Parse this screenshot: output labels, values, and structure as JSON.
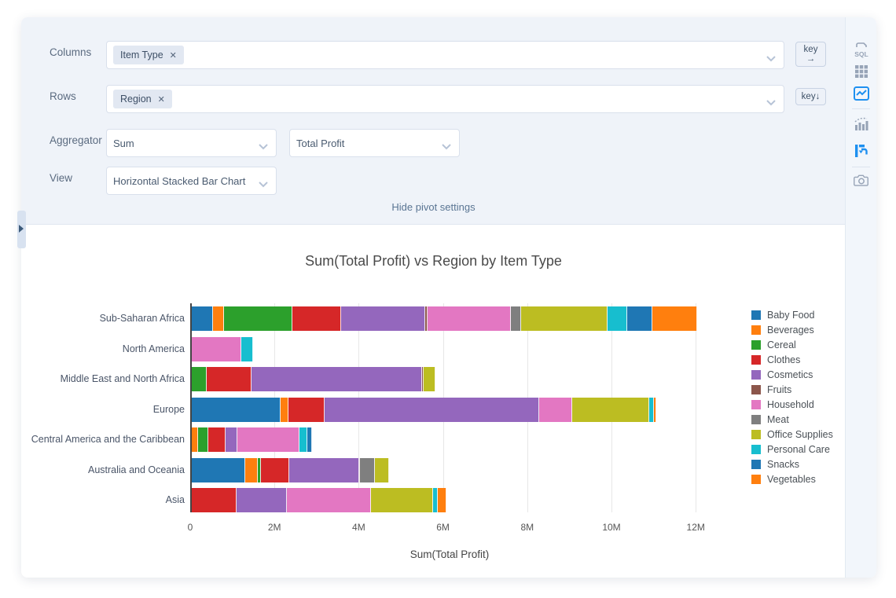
{
  "settings": {
    "columns_label": "Columns",
    "columns_tag": "Item Type",
    "rows_label": "Rows",
    "rows_tag": "Region",
    "aggregator_label": "Aggregator",
    "aggregator_value": "Sum",
    "aggregator_field": "Total Profit",
    "view_label": "View",
    "view_value": "Horizontal Stacked Bar Chart",
    "remove_icon": "✕",
    "key_col_label": "key",
    "key_col_arrow": "→",
    "key_row_label": "key",
    "key_row_arrow": "↓",
    "hide_link": "Hide pivot settings"
  },
  "toolbar": {
    "icons": [
      {
        "name": "sql-icon",
        "active": false
      },
      {
        "name": "table-icon",
        "active": false
      },
      {
        "name": "chart-image-icon",
        "active": true
      },
      {
        "name": "stats-chart-icon",
        "active": false
      },
      {
        "name": "pivot-icon",
        "active": true
      },
      {
        "name": "camera-icon",
        "active": false
      }
    ],
    "active_color": "#1e90f0",
    "inactive_color": "#97a4b7"
  },
  "chart_data": {
    "type": "bar",
    "orientation": "horizontal",
    "stacked": true,
    "grid": true,
    "legend_position": "right",
    "title": "Sum(Total Profit) vs Region by Item Type",
    "xlabel": "Sum(Total Profit)",
    "values_unit": "millions",
    "xlim_m": [
      0,
      12
    ],
    "x_ticks": [
      {
        "label": "0",
        "value": 0
      },
      {
        "label": "2M",
        "value": 2
      },
      {
        "label": "4M",
        "value": 4
      },
      {
        "label": "6M",
        "value": 6
      },
      {
        "label": "8M",
        "value": 8
      },
      {
        "label": "10M",
        "value": 10
      },
      {
        "label": "12M",
        "value": 12
      }
    ],
    "categories": [
      "Sub-Saharan Africa",
      "North America",
      "Middle East and North Africa",
      "Europe",
      "Central America and the Caribbean",
      "Australia and Oceania",
      "Asia"
    ],
    "series": [
      {
        "name": "Baby Food",
        "color": "#1f77b4",
        "values": [
          0.5,
          0,
          0,
          2.1,
          0,
          1.26,
          0
        ]
      },
      {
        "name": "Beverages",
        "color": "#ff7f0e",
        "values": [
          0.27,
          0,
          0,
          0.2,
          0.14,
          0.3,
          0
        ]
      },
      {
        "name": "Cereal",
        "color": "#2ca02c",
        "values": [
          1.62,
          0,
          0.36,
          0,
          0.25,
          0.08,
          0
        ]
      },
      {
        "name": "Clothes",
        "color": "#d62728",
        "values": [
          1.15,
          0,
          1.05,
          0.85,
          0.41,
          0.67,
          1.07
        ]
      },
      {
        "name": "Cosmetics",
        "color": "#9467bd",
        "values": [
          2.0,
          0,
          4.05,
          5.1,
          0.29,
          1.66,
          1.18
        ]
      },
      {
        "name": "Fruits",
        "color": "#8c564b",
        "values": [
          0.06,
          0,
          0.04,
          0,
          0,
          0.03,
          0
        ]
      },
      {
        "name": "Household",
        "color": "#e377c2",
        "values": [
          1.98,
          1.17,
          0,
          0.78,
          1.47,
          0,
          2.0
        ]
      },
      {
        "name": "Meat",
        "color": "#7f7f7f",
        "values": [
          0.24,
          0,
          0,
          0,
          0,
          0.34,
          0
        ]
      },
      {
        "name": "Office Supplies",
        "color": "#bcbd22",
        "values": [
          2.05,
          0,
          0.29,
          1.82,
          0,
          0.35,
          1.47
        ]
      },
      {
        "name": "Personal Care",
        "color": "#17becf",
        "values": [
          0.47,
          0.28,
          0,
          0.12,
          0.19,
          0,
          0.12
        ]
      },
      {
        "name": "Snacks",
        "color": "#1f77b4",
        "values": [
          0.6,
          0,
          0,
          0,
          0.11,
          0,
          0
        ]
      },
      {
        "name": "Vegetables",
        "color": "#ff7f0e",
        "values": [
          1.05,
          0,
          0,
          0.05,
          0,
          0,
          0.2
        ]
      }
    ]
  }
}
